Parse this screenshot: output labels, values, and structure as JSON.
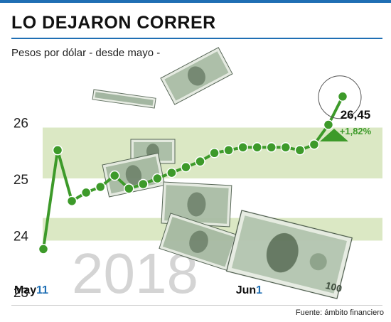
{
  "title": "LO DEJARON CORRER",
  "subtitle": "Pesos por dólar - desde mayo -",
  "source": "Fuente: ámbito financiero",
  "year_watermark": "2018",
  "colors": {
    "line": "#3d9a2a",
    "band": "#dbe8c4",
    "accent": "#1f6fb4",
    "up_arrow": "#3d9a2a"
  },
  "callout": {
    "value": "26,45",
    "change": "+1,82%"
  },
  "chart_data": {
    "type": "line",
    "title": "LO DEJARON CORRER",
    "subtitle": "Pesos por dólar - desde mayo -",
    "ylim": [
      23,
      26.9
    ],
    "yticks": [
      23,
      24,
      25,
      26
    ],
    "ytick_labels": [
      "23",
      "24",
      "25",
      "26"
    ],
    "xtick_labels": [
      {
        "month": "May",
        "day": "11",
        "index": 0
      },
      {
        "month": "Jun",
        "day": "1",
        "index": 15
      }
    ],
    "bands": [
      [
        23.9,
        24.3
      ],
      [
        25.0,
        25.9
      ]
    ],
    "series": [
      {
        "values": [
          23.75,
          25.5,
          24.6,
          24.75,
          24.85,
          25.05,
          24.82,
          24.9,
          25.0,
          25.1,
          25.2,
          25.3,
          25.45,
          25.5,
          25.55,
          25.55,
          25.55,
          25.55,
          25.5,
          25.6,
          25.95,
          26.45
        ]
      }
    ],
    "highlight": {
      "index": 21,
      "value": 26.45,
      "label": "26,45",
      "change": "+1,82%"
    }
  }
}
